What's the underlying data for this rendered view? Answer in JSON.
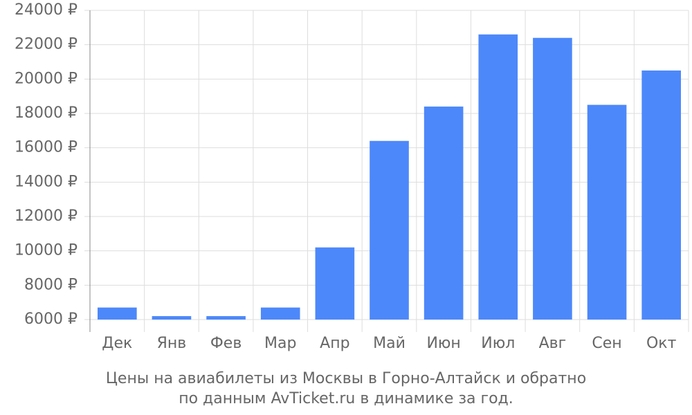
{
  "chart_data": {
    "type": "bar",
    "title": "Цены на авиабилеты из Москвы в Горно-Алтайск и обратно",
    "subtitle": "по данным AvTicket.ru в динамике за год.",
    "categories": [
      "Дек",
      "Янв",
      "Фев",
      "Мар",
      "Апр",
      "Май",
      "Июн",
      "Июл",
      "Авг",
      "Сен",
      "Окт"
    ],
    "values": [
      6700,
      6200,
      6200,
      6700,
      10200,
      16400,
      18400,
      22600,
      22400,
      18500,
      20500
    ],
    "color": "#4d88fa",
    "ylim": [
      6000,
      24000
    ],
    "yticks": [
      {
        "value": 6000,
        "label": "6000 ₽"
      },
      {
        "value": 8000,
        "label": "8000 ₽"
      },
      {
        "value": 10000,
        "label": "10000 ₽"
      },
      {
        "value": 12000,
        "label": "12000 ₽"
      },
      {
        "value": 14000,
        "label": "14000 ₽"
      },
      {
        "value": 16000,
        "label": "16000 ₽"
      },
      {
        "value": 18000,
        "label": "18000 ₽"
      },
      {
        "value": 20000,
        "label": "20000 ₽"
      },
      {
        "value": 22000,
        "label": "22000 ₽"
      },
      {
        "value": 24000,
        "label": "24000 ₽"
      }
    ],
    "grid": true
  }
}
